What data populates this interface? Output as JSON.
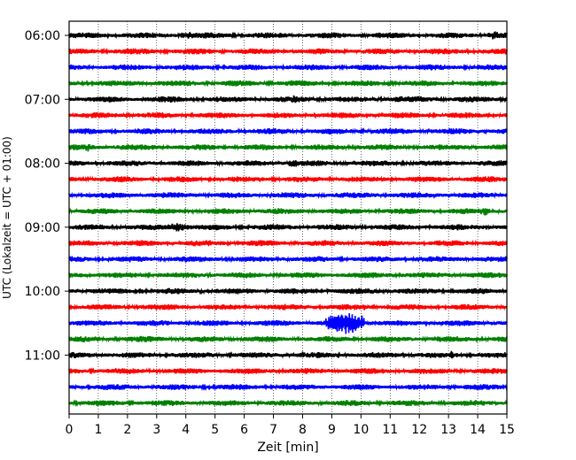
{
  "chart_data": {
    "type": "line",
    "subtype": "helicorder",
    "title": "",
    "xlabel": "Zeit  [min]",
    "ylabel": "UTC (Lokalzeit = UTC + 01:00)",
    "xlim": [
      0,
      15
    ],
    "x_ticks": [
      "0",
      "1",
      "2",
      "3",
      "4",
      "5",
      "6",
      "7",
      "8",
      "9",
      "10",
      "11",
      "12",
      "13",
      "14",
      "15"
    ],
    "y_ticks": [
      "06:00",
      "07:00",
      "08:00",
      "09:00",
      "10:00",
      "11:00"
    ],
    "grid_x": true,
    "trace_interval_minutes": 15,
    "first_trace_start": "06:00",
    "last_trace_start": "11:45",
    "trace_count": 24,
    "colors_cycle": [
      "#000000",
      "#ff0000",
      "#0000ff",
      "#008000"
    ],
    "events": [
      {
        "trace_start": "06:00",
        "start_min": 3.8,
        "end_min": 4.3,
        "amp": 1.6
      },
      {
        "trace_start": "06:00",
        "start_min": 14.3,
        "end_min": 14.8,
        "amp": 1.7
      },
      {
        "trace_start": "07:00",
        "start_min": 7.6,
        "end_min": 7.8,
        "amp": 1.7
      },
      {
        "trace_start": "07:00",
        "start_min": 11.1,
        "end_min": 11.5,
        "amp": 1.6
      },
      {
        "trace_start": "07:00",
        "start_min": 3.3,
        "end_min": 3.6,
        "amp": 1.4
      },
      {
        "trace_start": "07:45",
        "start_min": 0.5,
        "end_min": 0.8,
        "amp": 1.6
      },
      {
        "trace_start": "08:00",
        "start_min": 7.5,
        "end_min": 7.9,
        "amp": 1.7
      },
      {
        "trace_start": "08:45",
        "start_min": 14.1,
        "end_min": 14.4,
        "amp": 1.7
      },
      {
        "trace_start": "09:00",
        "start_min": 3.3,
        "end_min": 4.2,
        "amp": 1.6
      },
      {
        "trace_start": "10:00",
        "start_min": 2.3,
        "end_min": 2.6,
        "amp": 1.3
      },
      {
        "trace_start": "10:15",
        "start_min": 10.0,
        "end_min": 10.2,
        "amp": 1.7
      },
      {
        "trace_start": "10:30",
        "start_min": 8.8,
        "end_min": 10.1,
        "amp": 4.5
      },
      {
        "trace_start": "11:00",
        "start_min": 13.0,
        "end_min": 13.2,
        "amp": 2.2
      },
      {
        "trace_start": "11:00",
        "start_min": 7.9,
        "end_min": 8.1,
        "amp": 1.4
      }
    ]
  }
}
